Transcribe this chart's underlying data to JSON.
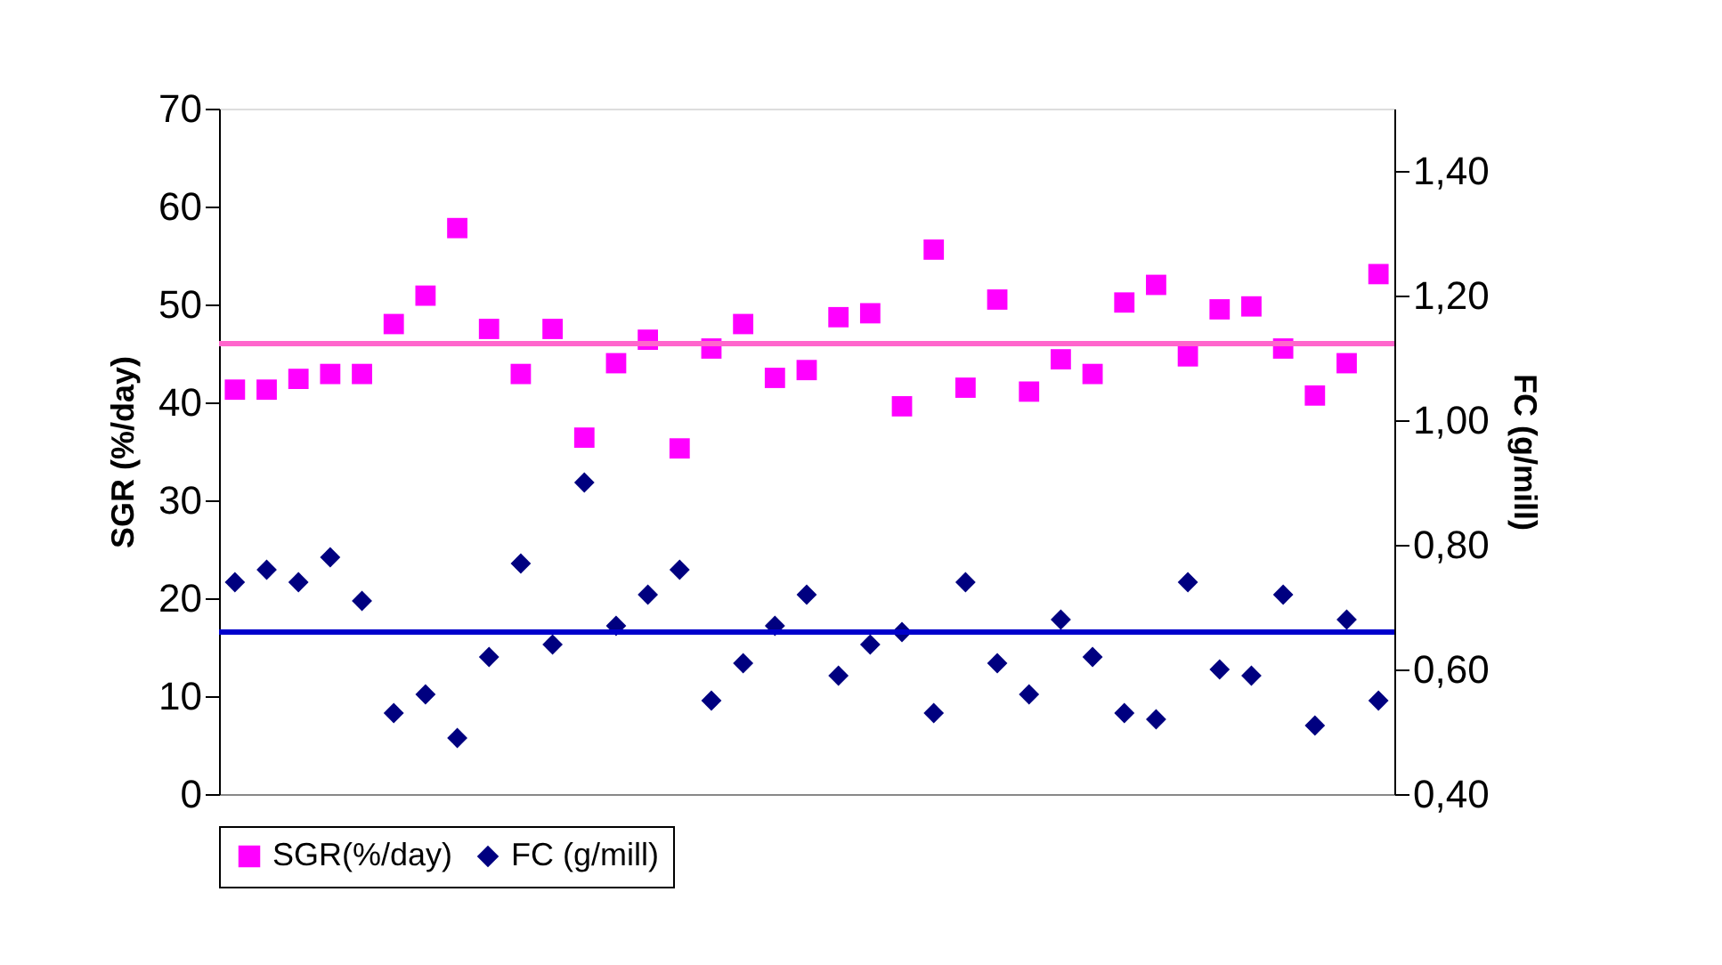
{
  "chart_data": {
    "type": "scatter",
    "ylabel": "SGR (%/day)",
    "y2label": "FC (g/mill)",
    "categories": [
      null,
      null,
      null,
      null,
      null,
      null,
      null,
      null,
      null,
      null,
      null,
      null,
      null,
      null,
      null,
      null,
      null,
      null,
      null,
      null,
      null,
      null,
      null,
      null,
      null,
      null,
      null,
      null,
      null,
      null,
      null,
      null,
      null,
      null,
      null,
      null,
      null
    ],
    "series": [
      {
        "name": "SGR(%/day)",
        "color": "#ff00ff",
        "marker": "square",
        "values": [
          41.3,
          41.3,
          42.4,
          42.9,
          42.9,
          48.0,
          50.9,
          57.8,
          47.5,
          42.9,
          47.5,
          36.4,
          44.0,
          46.4,
          35.3,
          45.5,
          48.0,
          42.5,
          43.3,
          48.7,
          49.1,
          39.6,
          55.6,
          41.5,
          50.5,
          41.1,
          44.4,
          42.9,
          50.2,
          52.0,
          44.7,
          49.5,
          49.8,
          45.5,
          40.7,
          44.0,
          53.1
        ]
      },
      {
        "name": "FC (g/mill)",
        "color": "#000080",
        "marker": "diamond",
        "axis": "y2",
        "values": [
          0.74,
          0.76,
          0.74,
          0.78,
          0.71,
          0.53,
          0.56,
          0.49,
          0.62,
          0.77,
          0.64,
          0.9,
          0.67,
          0.72,
          0.76,
          0.55,
          0.61,
          0.67,
          0.72,
          0.59,
          0.64,
          0.66,
          0.53,
          0.74,
          0.61,
          0.56,
          0.68,
          0.62,
          0.53,
          0.52,
          0.74,
          0.6,
          0.59,
          0.72,
          0.51,
          0.68,
          0.55
        ]
      }
    ],
    "ylim": [
      0,
      70
    ],
    "yticks": [
      0,
      10,
      20,
      30,
      40,
      50,
      60,
      70
    ],
    "y2lim": [
      0.4,
      1.5
    ],
    "y2ticks": [
      {
        "value": 0.4,
        "label": "0,40"
      },
      {
        "value": 0.6,
        "label": "0,60"
      },
      {
        "value": 0.8,
        "label": "0,80"
      },
      {
        "value": 1.0,
        "label": "1,00"
      },
      {
        "value": 1.2,
        "label": "1,20"
      },
      {
        "value": 1.4,
        "label": "1,40"
      }
    ],
    "ref_lines": [
      {
        "axis": "y",
        "value": 46.0,
        "color": "#ff66cc"
      },
      {
        "axis": "y2",
        "value": 0.66,
        "color": "#0000cc"
      }
    ],
    "grid": false,
    "legend": "bottom"
  }
}
